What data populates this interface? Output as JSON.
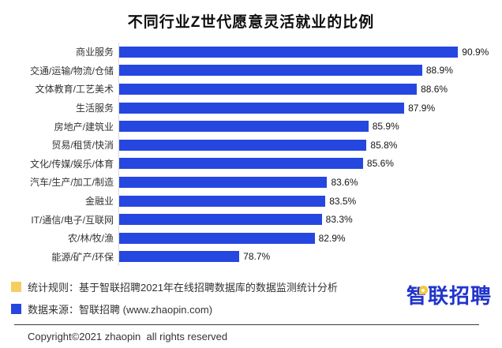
{
  "page": {
    "title": "不同行业Z世代愿意灵活就业的比例"
  },
  "chart_data": {
    "type": "bar",
    "orientation": "horizontal",
    "title": "不同行业Z世代愿意灵活就业的比例",
    "categories": [
      "商业服务",
      "交通/运输/物流/仓储",
      "文体教育/工艺美术",
      "生活服务",
      "房地产/建筑业",
      "贸易/租赁/快消",
      "文化/传媒/娱乐/体育",
      "汽车/生产/加工/制造",
      "金融业",
      "IT/通信/电子/互联网",
      "农/林/牧/渔",
      "能源/矿产/环保"
    ],
    "values": [
      90.9,
      88.9,
      88.6,
      87.9,
      85.9,
      85.8,
      85.6,
      83.6,
      83.5,
      83.3,
      82.9,
      78.7
    ],
    "value_labels": [
      "90.9%",
      "88.9%",
      "88.6%",
      "87.9%",
      "85.9%",
      "85.8%",
      "85.6%",
      "83.6%",
      "83.5%",
      "83.3%",
      "82.9%",
      "78.7%"
    ],
    "xlabel": "",
    "ylabel": "",
    "xlim": [
      72,
      93
    ],
    "grid": false,
    "data_labels": true,
    "bar_color": "#2547e0",
    "axis_line_color": "#d9d9d9"
  },
  "footer": {
    "legend": [
      {
        "marker_color": "#f5ce62",
        "text": "统计规则：基于智联招聘2021年在线招聘数据库的数据监测统计分析"
      },
      {
        "marker_color": "#2547e0",
        "text": "数据来源：智联招聘 (www.zhaopin.com)"
      }
    ],
    "copyright": "Copyright©2021 zhaopin  all rights reserved",
    "logo_text": "智联招聘",
    "logo_color": "#2135cb",
    "logo_bubble_color": "#f6c83f"
  }
}
